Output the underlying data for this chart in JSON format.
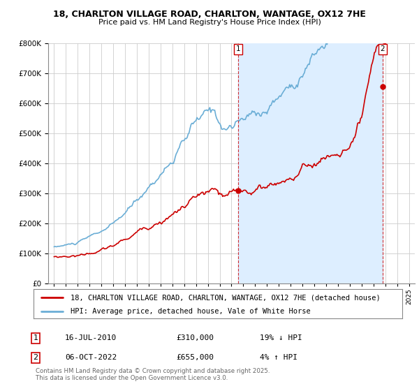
{
  "title": "18, CHARLTON VILLAGE ROAD, CHARLTON, WANTAGE, OX12 7HE",
  "subtitle": "Price paid vs. HM Land Registry's House Price Index (HPI)",
  "ylim": [
    0,
    800000
  ],
  "xlim_start": 1994.5,
  "xlim_end": 2025.5,
  "hpi_color": "#6baed6",
  "price_color": "#cc0000",
  "shade_color": "#ddeeff",
  "marker1_date": 2010.54,
  "marker1_price": 310000,
  "marker2_date": 2022.76,
  "marker2_price": 655000,
  "legend_label1": "18, CHARLTON VILLAGE ROAD, CHARLTON, WANTAGE, OX12 7HE (detached house)",
  "legend_label2": "HPI: Average price, detached house, Vale of White Horse",
  "annotation1_date": "16-JUL-2010",
  "annotation1_price": "£310,000",
  "annotation1_hpi": "19% ↓ HPI",
  "annotation2_date": "06-OCT-2022",
  "annotation2_price": "£655,000",
  "annotation2_hpi": "4% ↑ HPI",
  "footer": "Contains HM Land Registry data © Crown copyright and database right 2025.\nThis data is licensed under the Open Government Licence v3.0."
}
